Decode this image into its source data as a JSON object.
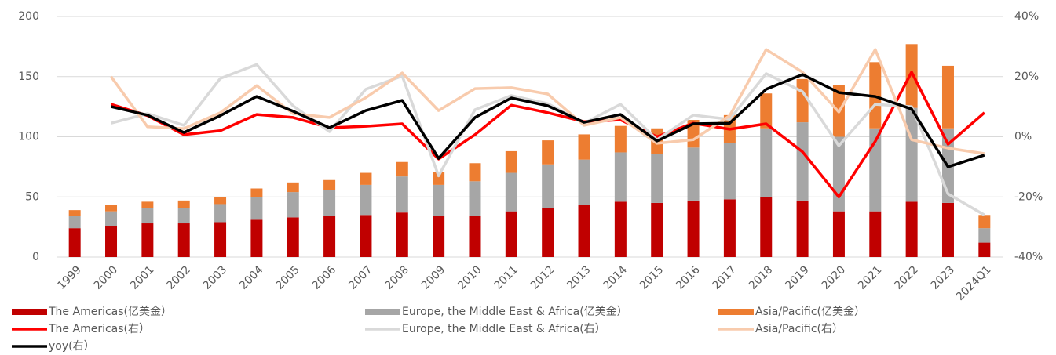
{
  "chart_data": {
    "type": "combo",
    "categories": [
      "1999",
      "2000",
      "2001",
      "2002",
      "2003",
      "2004",
      "2005",
      "2006",
      "2007",
      "2008",
      "2009",
      "2010",
      "2011",
      "2012",
      "2013",
      "2014",
      "2015",
      "2016",
      "2017",
      "2018",
      "2019",
      "2020",
      "2021",
      "2022",
      "2023",
      "2024Q1"
    ],
    "ylim": [
      0,
      200
    ],
    "yticks": [
      0,
      50,
      100,
      150,
      200
    ],
    "y2lim": [
      -40,
      40
    ],
    "y2ticks": [
      {
        "value": -40,
        "label": "-40%"
      },
      {
        "value": -20,
        "label": "-20%"
      },
      {
        "value": 0,
        "label": "0%"
      },
      {
        "value": 20,
        "label": "20%"
      },
      {
        "value": 40,
        "label": "40%"
      }
    ],
    "grid": true,
    "stacked": true,
    "series": [
      {
        "name": "The Americas(亿美金）",
        "type": "bar",
        "color": "#c00000",
        "values": [
          24,
          26,
          28,
          28,
          29,
          31,
          33,
          34,
          35,
          37,
          34,
          34,
          38,
          41,
          43,
          46,
          45,
          47,
          48,
          50,
          47,
          38,
          38,
          46,
          45,
          12
        ]
      },
      {
        "name": "Europe, the Middle East & Africa(亿美金）",
        "type": "bar",
        "color": "#a6a6a6",
        "values": [
          10,
          12,
          13,
          13,
          15,
          19,
          21,
          22,
          25,
          30,
          26,
          29,
          32,
          36,
          38,
          41,
          41,
          44,
          47,
          57,
          65,
          62,
          69,
          78,
          62,
          12
        ]
      },
      {
        "name": "Asia/Pacific(亿美金）",
        "type": "bar",
        "color": "#ed7d31",
        "values": [
          5,
          5,
          5,
          6,
          6,
          7,
          8,
          8,
          10,
          12,
          11,
          15,
          18,
          20,
          21,
          22,
          21,
          23,
          23,
          29,
          36,
          43,
          55,
          53,
          52,
          11
        ]
      },
      {
        "name": "The Americas(右）",
        "type": "line",
        "axis": "y2",
        "color": "#ff0000",
        "values": [
          null,
          10.8,
          7,
          0.7,
          2,
          7.4,
          6.4,
          3,
          3.5,
          4.3,
          -7.4,
          0.7,
          10.5,
          8,
          5,
          5.6,
          0,
          4.5,
          2.5,
          4.3,
          -5,
          -20,
          -1.5,
          21.5,
          -2.5,
          8
        ]
      },
      {
        "name": "Europe, the Middle East & Africa(右）",
        "type": "line",
        "axis": "y2",
        "color": "#d9d9d9",
        "values": [
          null,
          4.5,
          7.7,
          3.8,
          19.4,
          24,
          10.3,
          1.7,
          15.8,
          20.2,
          -13,
          9,
          13.7,
          11,
          4.5,
          10.8,
          -1,
          7.2,
          5.8,
          21,
          15,
          -3,
          10.8,
          10,
          -19,
          -26
        ]
      },
      {
        "name": "Asia/Pacific(右）",
        "type": "line",
        "axis": "y2",
        "color": "#f8cbad",
        "values": [
          null,
          20,
          3.3,
          2.7,
          8,
          17,
          7.7,
          6.4,
          13,
          21.2,
          8.7,
          16,
          16.3,
          14.2,
          3.8,
          6.4,
          -2.2,
          -1,
          7,
          29,
          21.5,
          8.2,
          29,
          -1,
          -3.8,
          -5.6
        ]
      },
      {
        "name": "yoy(右）",
        "type": "line",
        "axis": "y2",
        "color": "#000000",
        "values": [
          null,
          10,
          7.2,
          1.4,
          7,
          13.4,
          8.5,
          3,
          8.7,
          12.1,
          -7.2,
          6.4,
          12.9,
          10.3,
          4.8,
          7.4,
          -1.4,
          4.3,
          4.5,
          15.8,
          20.7,
          14.7,
          13.4,
          9.2,
          -10,
          -6.1
        ]
      }
    ]
  }
}
